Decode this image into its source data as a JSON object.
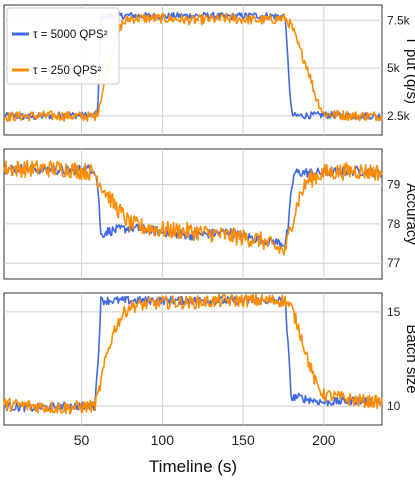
{
  "chart_data": {
    "type": "line",
    "xlabel": "Timeline (s)",
    "x_tick_labels": [
      "50",
      "100",
      "150",
      "200"
    ],
    "x_ticks": [
      50,
      100,
      150,
      200
    ],
    "xlim": [
      2,
      236
    ],
    "legend": {
      "placement": "top-left",
      "entries": [
        {
          "label": "τ = 5000 QPS²",
          "color": "#4169E1"
        },
        {
          "label": "τ = 250 QPS²",
          "color": "#FF8C00"
        }
      ]
    },
    "panels": [
      {
        "ylabel": "T put (q/s)",
        "ylim": [
          1500,
          8300
        ],
        "y_ticks": [
          2500,
          5000,
          7500
        ],
        "y_tick_labels": [
          "2.5k",
          "5k",
          "7.5k"
        ],
        "series": [
          {
            "color": "#4169E1",
            "x": [
              2,
              20,
              40,
              58,
              60,
              62,
              80,
              100,
              120,
              140,
              160,
              176,
              178,
              180,
              182,
              200,
              220,
              236
            ],
            "values": [
              2500,
              2450,
              2550,
              2500,
              2700,
              7700,
              7750,
              7700,
              7750,
              7700,
              7750,
              7700,
              5000,
              2600,
              2500,
              2550,
              2500,
              2500
            ]
          },
          {
            "color": "#FF8C00",
            "x": [
              2,
              20,
              40,
              58,
              60,
              65,
              70,
              75,
              80,
              100,
              120,
              140,
              160,
              176,
              180,
              185,
              190,
              195,
              200,
              220,
              236
            ],
            "values": [
              2450,
              2500,
              2500,
              2450,
              2700,
              4500,
              6200,
              7300,
              7600,
              7600,
              7500,
              7600,
              7500,
              7600,
              7200,
              6000,
              5000,
              3500,
              2600,
              2500,
              2500
            ]
          }
        ]
      },
      {
        "ylabel": "Accuracy",
        "ylim": [
          76.6,
          79.9
        ],
        "y_ticks": [
          77,
          78,
          79
        ],
        "y_tick_labels": [
          "77",
          "78",
          "79"
        ],
        "series": [
          {
            "color": "#4169E1",
            "x": [
              2,
              20,
              40,
              58,
              60,
              62,
              65,
              80,
              100,
              120,
              140,
              160,
              176,
              178,
              180,
              182,
              200,
              220,
              236
            ],
            "values": [
              79.4,
              79.4,
              79.35,
              79.4,
              79.0,
              77.7,
              77.8,
              77.9,
              77.8,
              77.7,
              77.8,
              77.6,
              77.5,
              77.9,
              78.9,
              79.3,
              79.3,
              79.35,
              79.3
            ]
          },
          {
            "color": "#FF8C00",
            "x": [
              2,
              20,
              40,
              58,
              62,
              70,
              80,
              90,
              100,
              120,
              140,
              160,
              170,
              176,
              180,
              185,
              190,
              200,
              220,
              236
            ],
            "values": [
              79.4,
              79.4,
              79.4,
              79.3,
              79.0,
              78.5,
              78.0,
              77.9,
              77.85,
              77.8,
              77.7,
              77.6,
              77.4,
              77.3,
              78.0,
              78.7,
              79.1,
              79.3,
              79.35,
              79.3
            ]
          }
        ]
      },
      {
        "ylabel": "Batch size",
        "ylim": [
          9.0,
          16.0
        ],
        "y_ticks": [
          10,
          15
        ],
        "y_tick_labels": [
          "10",
          "15"
        ],
        "series": [
          {
            "color": "#4169E1",
            "x": [
              2,
              20,
              40,
              58,
              60,
              62,
              80,
              100,
              120,
              140,
              160,
              176,
              178,
              180,
              182,
              200,
              220,
              236
            ],
            "values": [
              10.0,
              9.9,
              10.0,
              10.0,
              12.0,
              15.6,
              15.6,
              15.6,
              15.6,
              15.6,
              15.6,
              15.6,
              13.0,
              10.3,
              10.5,
              10.2,
              10.3,
              10.2
            ]
          },
          {
            "color": "#FF8C00",
            "x": [
              2,
              20,
              40,
              58,
              60,
              65,
              70,
              75,
              80,
              100,
              120,
              140,
              160,
              176,
              180,
              185,
              190,
              195,
              200,
              220,
              236
            ],
            "values": [
              10.1,
              10.0,
              9.9,
              10.0,
              10.5,
              12.5,
              14.0,
              14.8,
              15.3,
              15.5,
              15.5,
              15.6,
              15.6,
              15.6,
              15.2,
              14.0,
              12.5,
              11.2,
              10.6,
              10.3,
              10.2
            ]
          }
        ]
      }
    ]
  }
}
